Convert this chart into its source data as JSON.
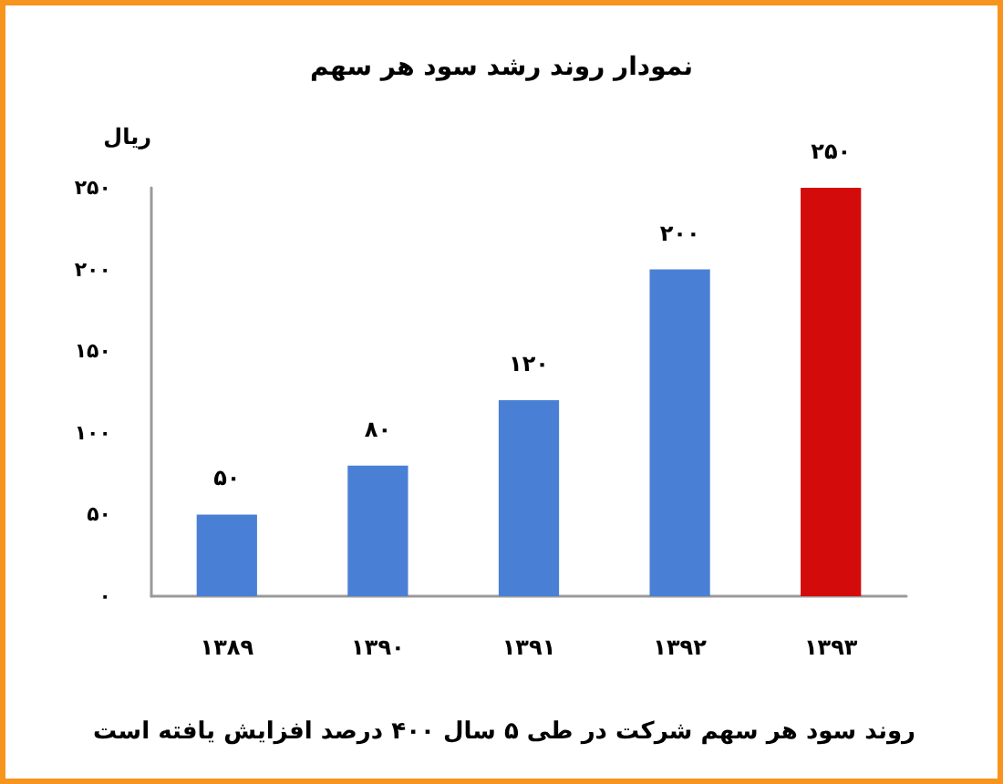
{
  "chart_data": {
    "type": "bar",
    "title": "نمودار روند رشد سود هر سهم",
    "ylabel": "ریال",
    "categories": [
      "۱۳۸۹",
      "۱۳۹۰",
      "۱۳۹۱",
      "۱۳۹۲",
      "۱۳۹۳"
    ],
    "values": [
      50,
      80,
      120,
      200,
      250
    ],
    "colors": [
      "#4a7fd6",
      "#4a7fd6",
      "#4a7fd6",
      "#4a7fd6",
      "#d40b0b"
    ],
    "value_labels": [
      "۵۰",
      "۸۰",
      "۱۲۰",
      "۲۰۰",
      "۲۵۰"
    ],
    "ylim": [
      0,
      250
    ],
    "yticks": [
      {
        "value": 0,
        "label": "۰"
      },
      {
        "value": 50,
        "label": "۵۰"
      },
      {
        "value": 100,
        "label": "۱۰۰"
      },
      {
        "value": 150,
        "label": "۱۵۰"
      },
      {
        "value": 200,
        "label": "۲۰۰"
      },
      {
        "value": 250,
        "label": "۲۵۰"
      }
    ],
    "grid": false,
    "annotations": [
      "روند سود هر سهم شرکت در طی ۵ سال ۴۰۰ درصد افزایش یافته است"
    ]
  }
}
